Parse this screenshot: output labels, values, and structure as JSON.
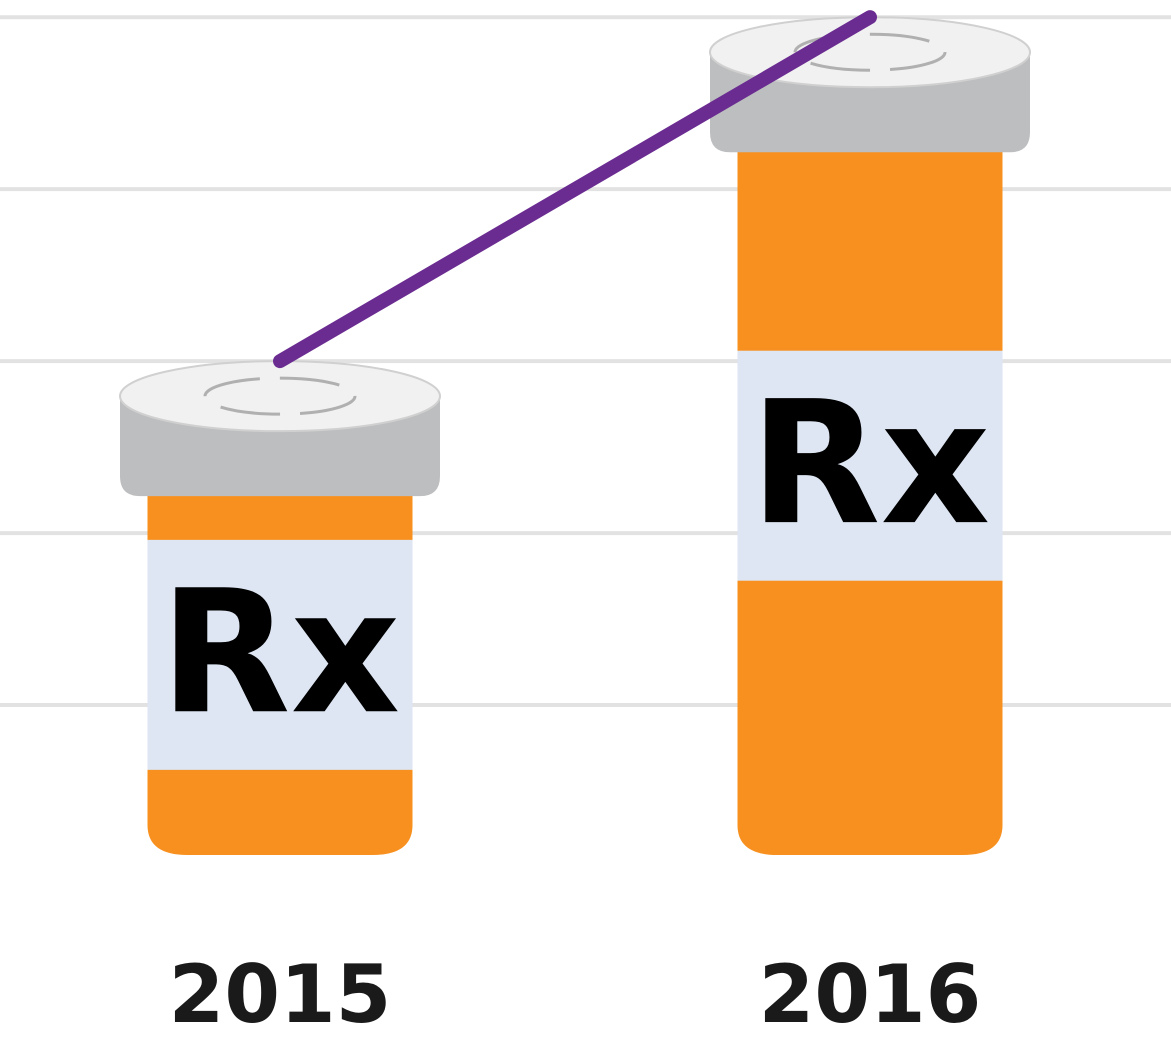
{
  "chart_data": {
    "type": "bottle",
    "categories": [
      "2015",
      "2016"
    ],
    "values": [
      3,
      5
    ],
    "annotations": [
      "Rx",
      "Rx"
    ],
    "color": "#f7901e",
    "line_color": "#6a2c91",
    "ylim": [
      0,
      5.1
    ],
    "yticks": [
      1,
      2,
      3,
      4,
      5
    ],
    "grid": true
  }
}
